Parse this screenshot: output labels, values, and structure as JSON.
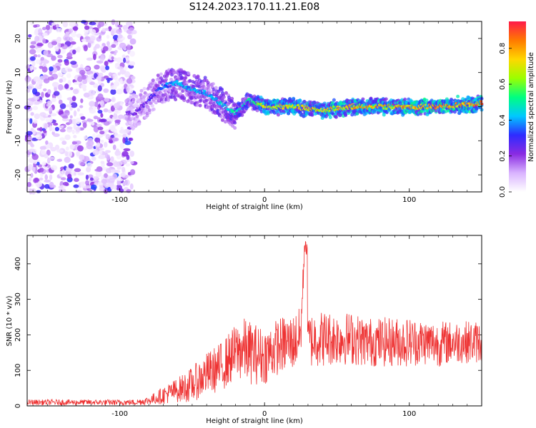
{
  "title": "S124.2023.170.11.21.E08",
  "chart_data": [
    {
      "type": "heatmap",
      "xlabel": "Height of straight line (km)",
      "ylabel": "Frequency (Hz)",
      "xlim": [
        -164,
        150
      ],
      "ylim": [
        -25,
        25
      ],
      "xticks": [
        -100,
        0,
        100
      ],
      "yticks": [
        -20,
        -10,
        0,
        10,
        20
      ],
      "colorbar": {
        "label": "Normalized spectral amplitude",
        "range": [
          0,
          0.95
        ],
        "ticks": [
          0.0,
          0.2,
          0.4,
          0.6,
          0.8
        ],
        "colors": [
          "#ffffff",
          "#d9b3ff",
          "#8a2be2",
          "#2e2bff",
          "#00c8ff",
          "#00ff80",
          "#9bff00",
          "#ffd700",
          "#ff7a00",
          "#ff1a4a"
        ]
      },
      "ridge": {
        "x": [
          -90,
          -80,
          -70,
          -60,
          -50,
          -40,
          -30,
          -20,
          -10,
          0,
          20,
          40,
          60,
          80,
          100,
          120,
          150
        ],
        "freq_hz": [
          -2,
          2,
          6,
          7,
          5,
          4,
          1,
          -2,
          2,
          0,
          0,
          -1,
          0,
          0,
          0,
          0,
          1
        ],
        "amplitude": [
          0.25,
          0.3,
          0.4,
          0.45,
          0.45,
          0.45,
          0.5,
          0.55,
          0.55,
          0.8,
          0.8,
          0.8,
          0.85,
          0.85,
          0.9,
          0.9,
          0.9
        ]
      },
      "noise_region_x": [
        -164,
        -90
      ]
    },
    {
      "type": "line",
      "xlabel": "Height of straight line (km)",
      "ylabel": "SNR (10 * v/v)",
      "xlim": [
        -164,
        150
      ],
      "ylim": [
        0,
        480
      ],
      "xticks": [
        -100,
        0,
        100
      ],
      "yticks": [
        0,
        100,
        200,
        300,
        400
      ],
      "color": "#ee3333",
      "x": [
        -164,
        -140,
        -120,
        -100,
        -90,
        -80,
        -70,
        -60,
        -50,
        -40,
        -30,
        -20,
        -15,
        -10,
        0,
        10,
        20,
        25,
        28,
        30,
        35,
        40,
        50,
        60,
        70,
        80,
        90,
        100,
        110,
        120,
        130,
        140,
        150
      ],
      "y": [
        10,
        10,
        10,
        10,
        10,
        15,
        30,
        45,
        60,
        90,
        110,
        150,
        160,
        150,
        140,
        170,
        180,
        200,
        480,
        180,
        190,
        190,
        190,
        190,
        180,
        180,
        180,
        180,
        180,
        175,
        180,
        180,
        180
      ],
      "spread": [
        8,
        8,
        8,
        8,
        8,
        12,
        25,
        35,
        50,
        60,
        70,
        80,
        90,
        90,
        80,
        80,
        80,
        80,
        20,
        80,
        80,
        80,
        75,
        75,
        70,
        70,
        70,
        70,
        65,
        65,
        60,
        60,
        60
      ]
    }
  ]
}
